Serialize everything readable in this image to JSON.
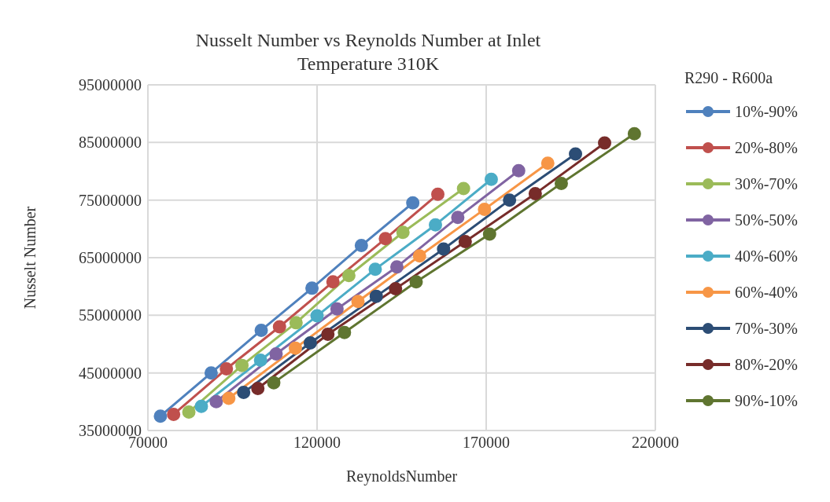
{
  "chart_data": {
    "type": "line",
    "title": "Nusselt Number vs Reynolds Number at Inlet Temperature 310K",
    "xlabel": "ReynoldsNumber",
    "ylabel": "Nusselt Number",
    "legend_title": "R290 - R600a",
    "legend": "right",
    "grid": true,
    "marker": "circle",
    "line_style": "solid",
    "xlim": [
      70000,
      220000
    ],
    "xticks": [
      70000,
      120000,
      170000,
      220000
    ],
    "ylim": [
      35000000,
      95000000
    ],
    "yticks": [
      35000000,
      45000000,
      55000000,
      65000000,
      75000000,
      85000000,
      95000000
    ],
    "series": [
      {
        "name": "10%-90%",
        "color": "#4f81bd",
        "x": [
          73700,
          88700,
          103500,
          118500,
          133100,
          148300
        ],
        "values": [
          37500000,
          45000000,
          52400000,
          59700000,
          67100000,
          74500000
        ]
      },
      {
        "name": "20%-80%",
        "color": "#c0504d",
        "x": [
          77600,
          93200,
          108900,
          124700,
          140200,
          155700
        ],
        "values": [
          37800000,
          45700000,
          53000000,
          60800000,
          68300000,
          76000000
        ]
      },
      {
        "name": "30%-70%",
        "color": "#9bbb59",
        "x": [
          82100,
          97800,
          113800,
          129400,
          145400,
          163300
        ],
        "values": [
          38200000,
          46300000,
          53700000,
          61900000,
          69400000,
          77000000
        ]
      },
      {
        "name": "50%-50%",
        "color": "#8064a2",
        "x": [
          90200,
          107900,
          125900,
          143600,
          161600,
          179600
        ],
        "values": [
          40000000,
          48300000,
          56100000,
          63400000,
          72000000,
          80100000
        ]
      },
      {
        "name": "40%-60%",
        "color": "#4bacc6",
        "x": [
          85800,
          103300,
          120000,
          137200,
          155000,
          171500
        ],
        "values": [
          39200000,
          47200000,
          54900000,
          63000000,
          70700000,
          78600000
        ]
      },
      {
        "name": "60%-40%",
        "color": "#f79646",
        "x": [
          93900,
          113600,
          132100,
          150300,
          169500,
          188200
        ],
        "values": [
          40600000,
          49300000,
          57400000,
          65300000,
          73400000,
          81400000
        ]
      },
      {
        "name": "70%-30%",
        "color": "#2c4d75",
        "x": [
          98300,
          118000,
          137500,
          157400,
          176900,
          196400
        ],
        "values": [
          41600000,
          50200000,
          58300000,
          66500000,
          75000000,
          83000000
        ]
      },
      {
        "name": "80%-20%",
        "color": "#772c2a",
        "x": [
          102500,
          123200,
          143200,
          163800,
          184500,
          205000
        ],
        "values": [
          42300000,
          51700000,
          59600000,
          67800000,
          76100000,
          84900000
        ]
      },
      {
        "name": "90%-10%",
        "color": "#5f7530",
        "x": [
          107200,
          128100,
          149300,
          171000,
          192200,
          213800
        ],
        "values": [
          43300000,
          52000000,
          60800000,
          69100000,
          77900000,
          86500000
        ]
      }
    ]
  }
}
